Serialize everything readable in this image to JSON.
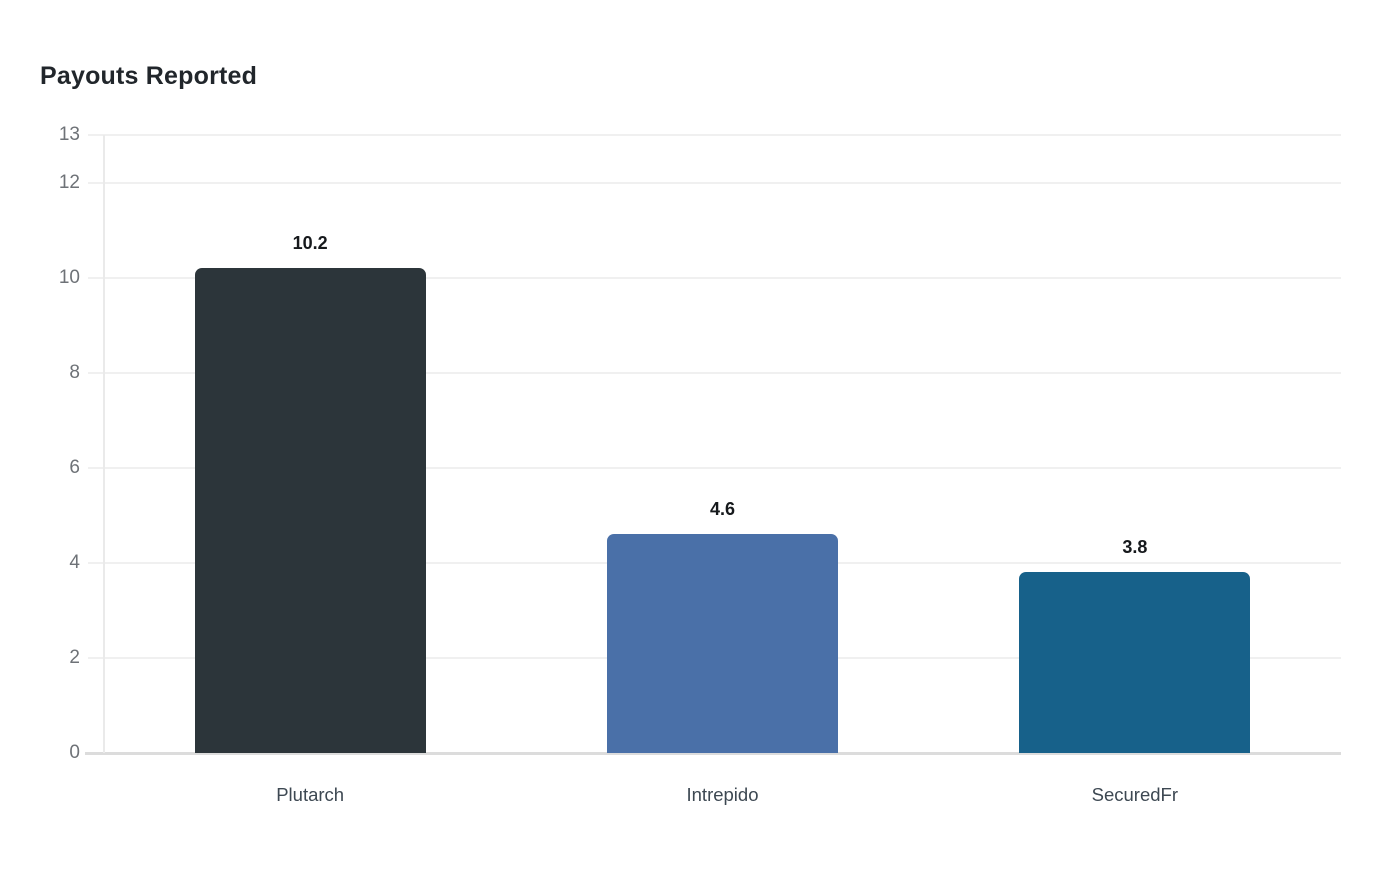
{
  "chart_data": {
    "type": "bar",
    "title": "Payouts Reported",
    "categories": [
      "Plutarch",
      "Intrepido",
      "SecuredFr"
    ],
    "values": [
      10.2,
      4.6,
      3.8
    ],
    "value_labels": [
      "10.2",
      "4.6",
      "3.8"
    ],
    "bar_colors": [
      "#2c353a",
      "#4a70a8",
      "#17618a"
    ],
    "xlabel": "",
    "ylabel": "",
    "ylim": [
      0,
      13
    ],
    "yticks": [
      0,
      2,
      4,
      6,
      8,
      10,
      12,
      13
    ],
    "grid": true,
    "legend": false
  },
  "colors": {
    "background": "#ffffff",
    "title": "#21262b",
    "tick_label": "#6e7277",
    "category_label": "#3d4852",
    "value_label": "#16191c",
    "gridline": "#f0f0f0",
    "baseline": "#dcdcdc",
    "axis_line": "#eaeaea"
  }
}
